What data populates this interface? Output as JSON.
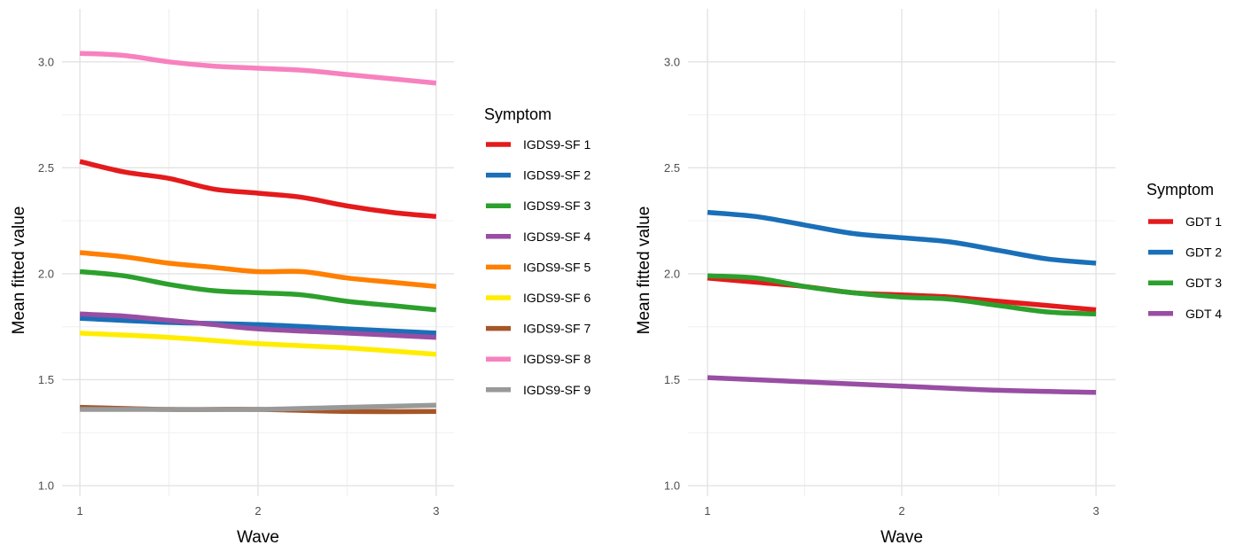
{
  "chart_data": [
    {
      "type": "line",
      "x": [
        1,
        2,
        3
      ],
      "xlabel": "Wave",
      "ylabel": "Mean fitted value",
      "xlim": [
        0.9,
        3.1
      ],
      "ylim": [
        0.95,
        3.25
      ],
      "x_ticks": [
        "1",
        "2",
        "3"
      ],
      "y_ticks": [
        "1.0",
        "1.5",
        "2.0",
        "2.5",
        "3.0"
      ],
      "grid": true,
      "legend": {
        "title": "Symptom",
        "position": "right"
      },
      "series": [
        {
          "name": "IGDS9-SF 1",
          "color": "#E41A1C",
          "points": [
            [
              1,
              2.53
            ],
            [
              1.25,
              2.48
            ],
            [
              1.5,
              2.45
            ],
            [
              1.75,
              2.4
            ],
            [
              2,
              2.38
            ],
            [
              2.25,
              2.36
            ],
            [
              2.5,
              2.32
            ],
            [
              2.75,
              2.29
            ],
            [
              3,
              2.27
            ]
          ]
        },
        {
          "name": "IGDS9-SF 2",
          "color": "#1A6FB8",
          "points": [
            [
              1,
              1.79
            ],
            [
              1.5,
              1.77
            ],
            [
              2,
              1.76
            ],
            [
              2.5,
              1.74
            ],
            [
              3,
              1.72
            ]
          ]
        },
        {
          "name": "IGDS9-SF 3",
          "color": "#2CA02C",
          "points": [
            [
              1,
              2.01
            ],
            [
              1.25,
              1.99
            ],
            [
              1.5,
              1.95
            ],
            [
              1.75,
              1.92
            ],
            [
              2,
              1.91
            ],
            [
              2.25,
              1.9
            ],
            [
              2.5,
              1.87
            ],
            [
              2.75,
              1.85
            ],
            [
              3,
              1.83
            ]
          ]
        },
        {
          "name": "IGDS9-SF 4",
          "color": "#984EA3",
          "points": [
            [
              1,
              1.81
            ],
            [
              1.25,
              1.8
            ],
            [
              1.5,
              1.78
            ],
            [
              1.75,
              1.76
            ],
            [
              2,
              1.74
            ],
            [
              2.5,
              1.72
            ],
            [
              3,
              1.7
            ]
          ]
        },
        {
          "name": "IGDS9-SF 5",
          "color": "#FF7F00",
          "points": [
            [
              1,
              2.1
            ],
            [
              1.25,
              2.08
            ],
            [
              1.5,
              2.05
            ],
            [
              1.75,
              2.03
            ],
            [
              2,
              2.01
            ],
            [
              2.25,
              2.01
            ],
            [
              2.5,
              1.98
            ],
            [
              2.75,
              1.96
            ],
            [
              3,
              1.94
            ]
          ]
        },
        {
          "name": "IGDS9-SF 6",
          "color": "#FFED00",
          "points": [
            [
              1,
              1.72
            ],
            [
              1.5,
              1.7
            ],
            [
              2,
              1.67
            ],
            [
              2.5,
              1.65
            ],
            [
              3,
              1.62
            ]
          ]
        },
        {
          "name": "IGDS9-SF 7",
          "color": "#A65628",
          "points": [
            [
              1,
              1.37
            ],
            [
              1.5,
              1.36
            ],
            [
              2,
              1.36
            ],
            [
              2.5,
              1.35
            ],
            [
              3,
              1.35
            ]
          ]
        },
        {
          "name": "IGDS9-SF 8",
          "color": "#F781BF",
          "points": [
            [
              1,
              3.04
            ],
            [
              1.25,
              3.03
            ],
            [
              1.5,
              3.0
            ],
            [
              1.75,
              2.98
            ],
            [
              2,
              2.97
            ],
            [
              2.25,
              2.96
            ],
            [
              2.5,
              2.94
            ],
            [
              2.75,
              2.92
            ],
            [
              3,
              2.9
            ]
          ]
        },
        {
          "name": "IGDS9-SF 9",
          "color": "#999999",
          "points": [
            [
              1,
              1.36
            ],
            [
              1.5,
              1.36
            ],
            [
              2,
              1.36
            ],
            [
              2.5,
              1.37
            ],
            [
              3,
              1.38
            ]
          ]
        }
      ]
    },
    {
      "type": "line",
      "x": [
        1,
        2,
        3
      ],
      "xlabel": "Wave",
      "ylabel": "Mean fitted value",
      "xlim": [
        0.9,
        3.1
      ],
      "ylim": [
        0.95,
        3.25
      ],
      "x_ticks": [
        "1",
        "2",
        "3"
      ],
      "y_ticks": [
        "1.0",
        "1.5",
        "2.0",
        "2.5",
        "3.0"
      ],
      "grid": true,
      "legend": {
        "title": "Symptom",
        "position": "right"
      },
      "series": [
        {
          "name": "GDT 1",
          "color": "#E41A1C",
          "points": [
            [
              1,
              1.98
            ],
            [
              1.25,
              1.96
            ],
            [
              1.5,
              1.94
            ],
            [
              1.75,
              1.91
            ],
            [
              2,
              1.9
            ],
            [
              2.25,
              1.89
            ],
            [
              2.5,
              1.87
            ],
            [
              2.75,
              1.85
            ],
            [
              3,
              1.83
            ]
          ]
        },
        {
          "name": "GDT 2",
          "color": "#1A6FB8",
          "points": [
            [
              1,
              2.29
            ],
            [
              1.25,
              2.27
            ],
            [
              1.5,
              2.23
            ],
            [
              1.75,
              2.19
            ],
            [
              2,
              2.17
            ],
            [
              2.25,
              2.15
            ],
            [
              2.5,
              2.11
            ],
            [
              2.75,
              2.07
            ],
            [
              3,
              2.05
            ]
          ]
        },
        {
          "name": "GDT 3",
          "color": "#2CA02C",
          "points": [
            [
              1,
              1.99
            ],
            [
              1.25,
              1.98
            ],
            [
              1.5,
              1.94
            ],
            [
              1.75,
              1.91
            ],
            [
              2,
              1.89
            ],
            [
              2.25,
              1.88
            ],
            [
              2.5,
              1.85
            ],
            [
              2.75,
              1.82
            ],
            [
              3,
              1.81
            ]
          ]
        },
        {
          "name": "GDT 4",
          "color": "#984EA3",
          "points": [
            [
              1,
              1.51
            ],
            [
              1.5,
              1.49
            ],
            [
              2,
              1.47
            ],
            [
              2.5,
              1.45
            ],
            [
              3,
              1.44
            ]
          ]
        }
      ]
    }
  ]
}
